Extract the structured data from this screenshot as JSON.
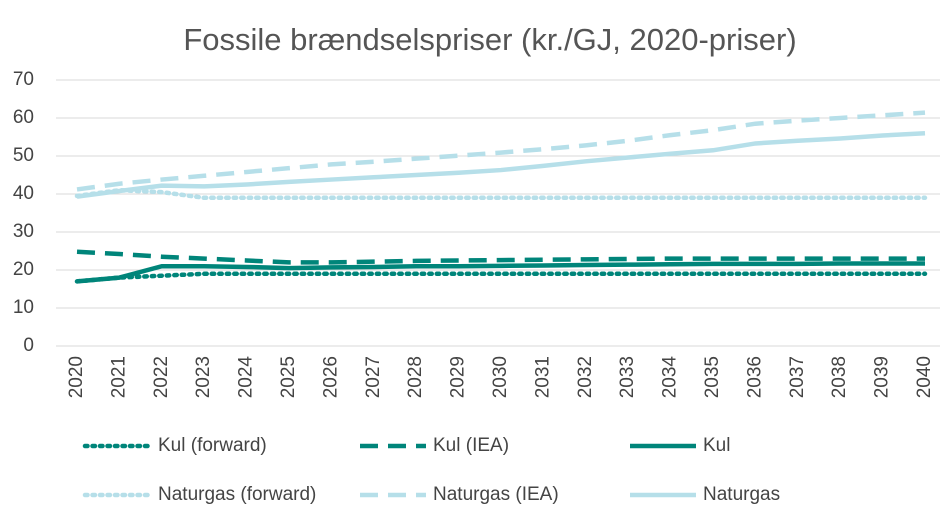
{
  "chart_data": {
    "type": "line",
    "title": "Fossile brændselspriser (kr./GJ, 2020-priser)",
    "categories": [
      "2020",
      "2021",
      "2022",
      "2023",
      "2024",
      "2025",
      "2026",
      "2027",
      "2028",
      "2029",
      "2030",
      "2031",
      "2032",
      "2033",
      "2034",
      "2035",
      "2036",
      "2037",
      "2038",
      "2039",
      "2040"
    ],
    "ylim": [
      0,
      70
    ],
    "yticks": [
      0,
      10,
      20,
      30,
      40,
      50,
      60,
      70
    ],
    "grid": true,
    "legend": "bottom",
    "series": [
      {
        "name": "Kul (forward)",
        "color": "#00857a",
        "dash": "dotted",
        "values": [
          17,
          18,
          18.5,
          19,
          19,
          19,
          19,
          19,
          19,
          19,
          19,
          19,
          19,
          19,
          19,
          19,
          19,
          19,
          19,
          19,
          19
        ]
      },
      {
        "name": "Kul (IEA)",
        "color": "#00857a",
        "dash": "dashed",
        "values": [
          24.8,
          24.2,
          23.5,
          23,
          22.5,
          22,
          22,
          22.2,
          22.4,
          22.5,
          22.6,
          22.7,
          22.8,
          22.9,
          23,
          23,
          23,
          23,
          23,
          23,
          23
        ]
      },
      {
        "name": "Kul",
        "color": "#00857a",
        "dash": "solid",
        "values": [
          17,
          18,
          21,
          21,
          20.8,
          20.5,
          20.7,
          20.8,
          21,
          21,
          21.1,
          21.2,
          21.3,
          21.4,
          21.5,
          21.6,
          21.6,
          21.6,
          21.7,
          21.7,
          21.7
        ]
      },
      {
        "name": "Naturgas (forward)",
        "color": "#b6dfe9",
        "dash": "dotted",
        "values": [
          39.5,
          41,
          40.5,
          39,
          39,
          39,
          39,
          39,
          39,
          39,
          39,
          39,
          39,
          39,
          39,
          39,
          39,
          39,
          39,
          39,
          39
        ]
      },
      {
        "name": "Naturgas  (IEA)",
        "color": "#b6dfe9",
        "dash": "dashed",
        "values": [
          41.2,
          42.7,
          43.8,
          44.8,
          45.8,
          46.8,
          47.8,
          48.5,
          49.3,
          50.1,
          50.9,
          51.8,
          52.8,
          54,
          55.5,
          56.8,
          58.5,
          59.3,
          60,
          60.7,
          61.4
        ]
      },
      {
        "name": "Naturgas",
        "color": "#b6dfe9",
        "dash": "solid",
        "values": [
          39.3,
          40.8,
          42.2,
          42,
          42.5,
          43.2,
          43.8,
          44.4,
          45,
          45.6,
          46.3,
          47.4,
          48.6,
          49.6,
          50.6,
          51.5,
          53.3,
          54,
          54.6,
          55.4,
          56
        ]
      }
    ]
  }
}
